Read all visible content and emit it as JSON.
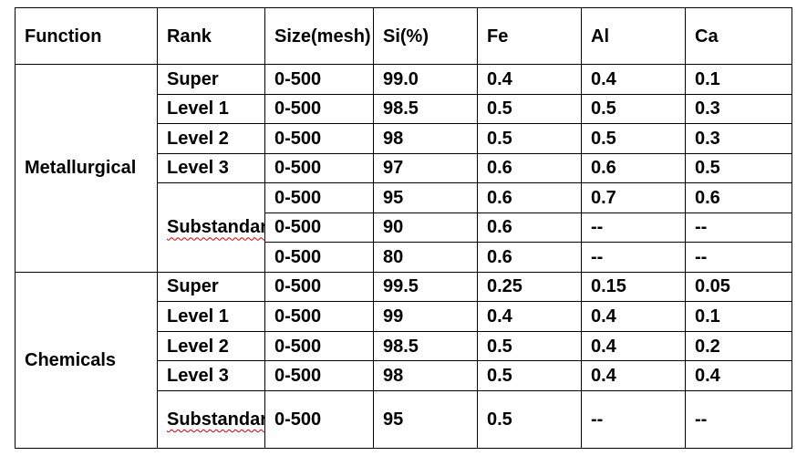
{
  "headers": [
    "Function",
    "Rank",
    "Size(mesh)",
    "Si(%)",
    "Fe",
    "Al",
    "Ca"
  ],
  "groups": [
    {
      "function": "Metallurgical",
      "rows": [
        {
          "rank": "Super",
          "size": "0-500",
          "si": "99.0",
          "fe": "0.4",
          "al": "0.4",
          "ca": "0.1"
        },
        {
          "rank": "Level 1",
          "size": "0-500",
          "si": "98.5",
          "fe": "0.5",
          "al": "0.5",
          "ca": "0.3"
        },
        {
          "rank": "Level 2",
          "size": "0-500",
          "si": "98",
          "fe": "0.5",
          "al": "0.5",
          "ca": "0.3"
        },
        {
          "rank": "Level 3",
          "size": "0-500",
          "si": "97",
          "fe": "0.6",
          "al": "0.6",
          "ca": "0.5"
        },
        {
          "rank": "Substandard",
          "size": "0-500",
          "si": "95",
          "fe": "0.6",
          "al": "0.7",
          "ca": "0.6"
        },
        {
          "rank": "",
          "size": "0-500",
          "si": "90",
          "fe": "0.6",
          "al": "--",
          "ca": "--"
        },
        {
          "rank": "",
          "size": "0-500",
          "si": "80",
          "fe": "0.6",
          "al": "--",
          "ca": "--"
        }
      ]
    },
    {
      "function": "Chemicals",
      "rows": [
        {
          "rank": "Super",
          "size": "0-500",
          "si": "99.5",
          "fe": "0.25",
          "al": "0.15",
          "ca": "0.05"
        },
        {
          "rank": "Level 1",
          "size": "0-500",
          "si": "99",
          "fe": "0.4",
          "al": "0.4",
          "ca": "0.1"
        },
        {
          "rank": "Level 2",
          "size": "0-500",
          "si": "98.5",
          "fe": "0.5",
          "al": "0.4",
          "ca": "0.2"
        },
        {
          "rank": "Level 3",
          "size": "0-500",
          "si": "98",
          "fe": "0.5",
          "al": "0.4",
          "ca": "0.4"
        },
        {
          "rank": "Substandard",
          "size": "0-500",
          "si": "95",
          "fe": "0.5",
          "al": "--",
          "ca": "--"
        }
      ]
    }
  ]
}
